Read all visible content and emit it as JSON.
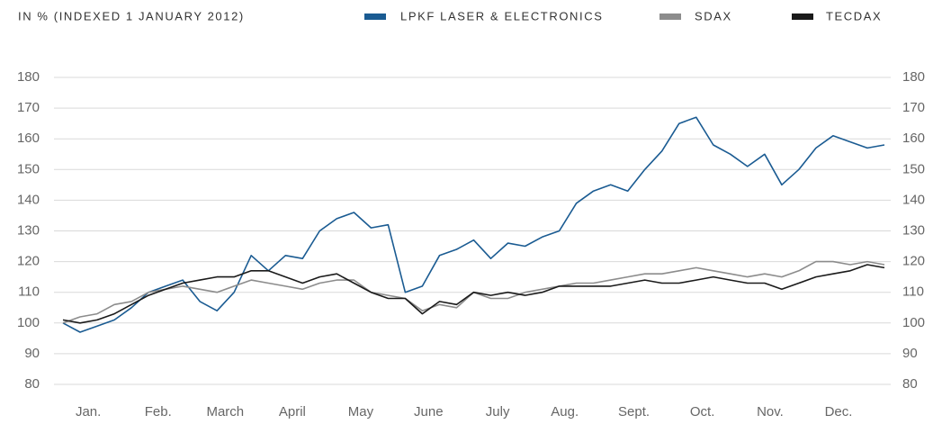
{
  "chart_data": {
    "type": "line",
    "y_label": "IN % (INDEXED 1 JANUARY 2012)",
    "x": [
      0,
      0.25,
      0.5,
      0.75,
      1,
      1.25,
      1.5,
      1.75,
      2,
      2.25,
      2.5,
      2.75,
      3,
      3.25,
      3.5,
      3.75,
      4,
      4.25,
      4.5,
      4.75,
      5,
      5.25,
      5.5,
      5.75,
      6,
      6.25,
      6.5,
      6.75,
      7,
      7.25,
      7.5,
      7.75,
      8,
      8.25,
      8.5,
      8.75,
      9,
      9.25,
      9.5,
      9.75,
      10,
      10.25,
      10.5,
      10.75,
      11,
      11.25,
      11.5,
      11.75,
      12
    ],
    "series": [
      {
        "name": "LPKF LASER & ELECTRONICS",
        "color": "#1a5b92",
        "values": [
          100,
          97,
          99,
          101,
          105,
          110,
          112,
          114,
          107,
          104,
          110,
          122,
          117,
          122,
          121,
          130,
          134,
          136,
          131,
          132,
          110,
          112,
          122,
          124,
          127,
          121,
          126,
          125,
          128,
          130,
          139,
          143,
          145,
          143,
          150,
          156,
          165,
          167,
          158,
          155,
          151,
          155,
          145,
          150,
          157,
          161,
          159,
          157,
          158
        ]
      },
      {
        "name": "SDAX",
        "color": "#8c8c8c",
        "values": [
          100,
          102,
          103,
          106,
          107,
          110,
          111,
          112,
          111,
          110,
          112,
          114,
          113,
          112,
          111,
          113,
          114,
          114,
          110,
          109,
          108,
          104,
          106,
          105,
          110,
          108,
          108,
          110,
          111,
          112,
          113,
          113,
          114,
          115,
          116,
          116,
          117,
          118,
          117,
          116,
          115,
          116,
          115,
          117,
          120,
          120,
          119,
          120,
          119
        ]
      },
      {
        "name": "TECDAX",
        "color": "#1a1a1a",
        "values": [
          101,
          100,
          101,
          103,
          106,
          109,
          111,
          113,
          114,
          115,
          115,
          117,
          117,
          115,
          113,
          115,
          116,
          113,
          110,
          108,
          108,
          103,
          107,
          106,
          110,
          109,
          110,
          109,
          110,
          112,
          112,
          112,
          112,
          113,
          114,
          113,
          113,
          114,
          115,
          114,
          113,
          113,
          111,
          113,
          115,
          116,
          117,
          119,
          118
        ]
      }
    ],
    "xlim": [
      0,
      12
    ],
    "xticks": [
      {
        "value": 0.37,
        "label": "Jan."
      },
      {
        "value": 1.39,
        "label": "Feb."
      },
      {
        "value": 2.37,
        "label": "March"
      },
      {
        "value": 3.35,
        "label": "April"
      },
      {
        "value": 4.35,
        "label": "May"
      },
      {
        "value": 5.34,
        "label": "June"
      },
      {
        "value": 6.35,
        "label": "July"
      },
      {
        "value": 7.33,
        "label": "Aug."
      },
      {
        "value": 8.34,
        "label": "Sept."
      },
      {
        "value": 9.34,
        "label": "Oct."
      },
      {
        "value": 10.33,
        "label": "Nov."
      },
      {
        "value": 11.33,
        "label": "Dec."
      }
    ],
    "ylim": [
      80,
      180
    ],
    "yticks": [
      80,
      90,
      100,
      110,
      120,
      130,
      140,
      150,
      160,
      170,
      180
    ],
    "y2lim": [
      80,
      180
    ],
    "y2ticks": [
      80,
      90,
      100,
      110,
      120,
      130,
      140,
      150,
      160,
      170,
      180
    ],
    "grid": true
  }
}
